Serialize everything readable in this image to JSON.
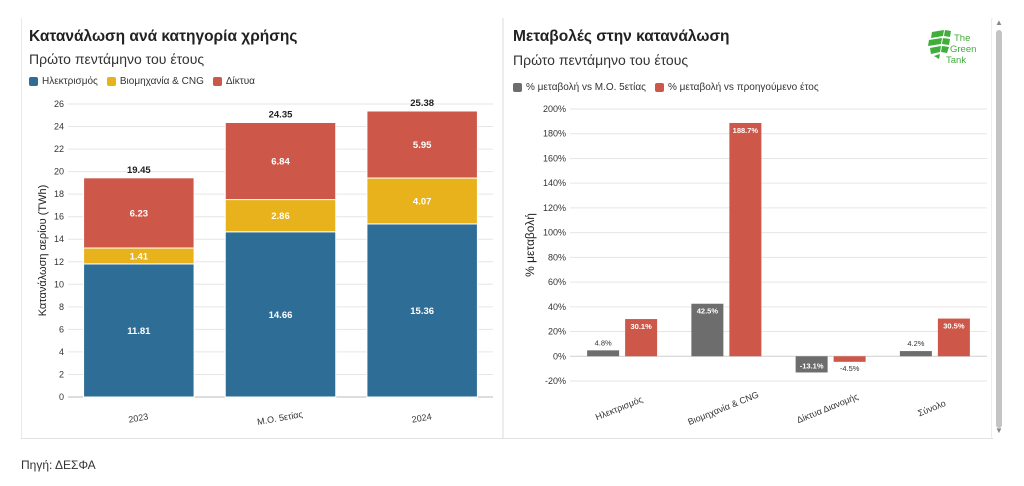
{
  "left": {
    "title": "Κατανάλωση ανά κατηγορία χρήσης",
    "subtitle": "Πρώτο πεντάμηνο του έτους",
    "legend": [
      {
        "label": "Ηλεκτρισμός",
        "color": "#2e6e96"
      },
      {
        "label": "Βιομηχανία & CNG",
        "color": "#e8b21c"
      },
      {
        "label": "Δίκτυα",
        "color": "#cd584a"
      }
    ]
  },
  "right": {
    "title": "Μεταβολές στην κατανάλωση",
    "subtitle": "Πρώτο πεντάμηνο του έτους",
    "legend": [
      {
        "label": "% μεταβολή vs Μ.Ο. 5ετίας",
        "color": "#6d6d6d"
      },
      {
        "label": "% μεταβολή vs προηγούμενο έτος",
        "color": "#cd584a"
      }
    ]
  },
  "logo": {
    "lines": [
      "The",
      "Green",
      "Tank"
    ]
  },
  "source": "Πηγή: ΔΕΣΦΑ",
  "chart_data": [
    {
      "type": "bar",
      "stacked": true,
      "title": "Κατανάλωση ανά κατηγορία χρήσης",
      "subtitle": "Πρώτο πεντάμηνο του έτους",
      "categories": [
        "2023",
        "Μ.Ο. 5ετίας",
        "2024"
      ],
      "series": [
        {
          "name": "Ηλεκτρισμός",
          "color": "#2e6e96",
          "values": [
            11.81,
            14.66,
            15.36
          ]
        },
        {
          "name": "Βιομηχανία & CNG",
          "color": "#e8b21c",
          "values": [
            1.41,
            2.86,
            4.07
          ]
        },
        {
          "name": "Δίκτυα",
          "color": "#cd584a",
          "values": [
            6.23,
            6.84,
            5.95
          ]
        }
      ],
      "totals": [
        "19.45",
        "24.35",
        "25.38"
      ],
      "value_labels": [
        [
          "11.81",
          "14.66",
          "15.36"
        ],
        [
          "1.41",
          "2.86",
          "4.07"
        ],
        [
          "6.23",
          "6.84",
          "5.95"
        ]
      ],
      "xlabel": "",
      "ylabel": "Κατανάλωση αερίου (TWh)",
      "ylim": [
        0,
        26
      ],
      "yticks": [
        0,
        2,
        4,
        6,
        8,
        10,
        12,
        14,
        16,
        18,
        20,
        22,
        24,
        26
      ],
      "grid": true,
      "legend_position": "top-left"
    },
    {
      "type": "bar",
      "title": "Μεταβολές στην κατανάλωση",
      "subtitle": "Πρώτο πεντάμηνο του έτους",
      "categories": [
        "Ηλεκτρισμός",
        "Βιομηχανία & CNG",
        "Δίκτυα Διανομής",
        "Σύνολο"
      ],
      "series": [
        {
          "name": "% μεταβολή vs Μ.Ο. 5ετίας",
          "color": "#6d6d6d",
          "values": [
            4.8,
            42.5,
            -13.1,
            4.2
          ],
          "labels": [
            "4.8%",
            "42.5%",
            "-13.1%",
            "4.2%"
          ]
        },
        {
          "name": "% μεταβολή vs προηγούμενο έτος",
          "color": "#cd584a",
          "values": [
            30.1,
            188.7,
            -4.5,
            30.5
          ],
          "labels": [
            "30.1%",
            "188.7%",
            "-4.5%",
            "30.5%"
          ]
        }
      ],
      "xlabel": "",
      "ylabel": "% μεταβολή",
      "ylim": [
        -20,
        200
      ],
      "yticks": [
        -20,
        0,
        20,
        40,
        60,
        80,
        100,
        120,
        140,
        160,
        180,
        200
      ],
      "ytick_labels": [
        "-20%",
        "0%",
        "20%",
        "40%",
        "60%",
        "80%",
        "100%",
        "120%",
        "140%",
        "160%",
        "180%",
        "200%"
      ],
      "grid": true,
      "legend_position": "top-left"
    }
  ]
}
